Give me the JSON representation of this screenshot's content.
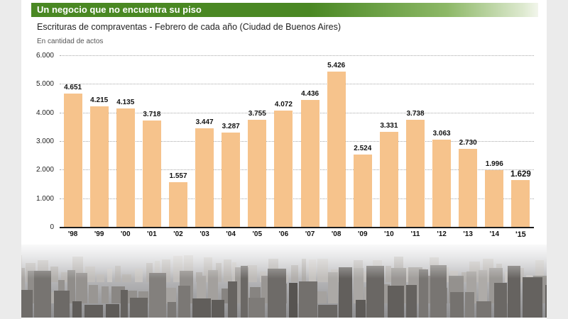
{
  "header": {
    "title": "Un negocio que no encuentra su piso",
    "subtitle": "Escrituras de compraventas - Febrero de cada año (Ciudad de Buenos Aires)",
    "unit_label": "En cantidad de actos"
  },
  "colors": {
    "header_green": "#4a8823",
    "bar_fill": "#f6c38c",
    "axis": "#1c1c1c",
    "grid": "#a8a8a8"
  },
  "chart_data": {
    "type": "bar",
    "title": "Escrituras de compraventas - Febrero de cada año (Ciudad de Buenos Aires)",
    "ylabel": "En cantidad de actos",
    "categories": [
      "'98",
      "'99",
      "'00",
      "'01",
      "'02",
      "'03",
      "'04",
      "'05",
      "'06",
      "'07",
      "'08",
      "'09",
      "'10",
      "'11",
      "'12",
      "'13",
      "'14",
      "'15"
    ],
    "values": [
      4651,
      4215,
      4135,
      3718,
      1557,
      3447,
      3287,
      3755,
      4072,
      4436,
      5426,
      2524,
      3331,
      3738,
      3063,
      2730,
      1996,
      1629
    ],
    "labels": [
      "4.651",
      "4.215",
      "4.135",
      "3.718",
      "1.557",
      "3.447",
      "3.287",
      "3.755",
      "4.072",
      "4.436",
      "5.426",
      "2.524",
      "3.331",
      "3.738",
      "3.063",
      "2.730",
      "1.996",
      "1.629"
    ],
    "ylim": [
      0,
      6000
    ],
    "yticks": [
      "0",
      "1.000",
      "2.000",
      "3.000",
      "4.000",
      "5.000",
      "6.000"
    ],
    "ytick_values": [
      0,
      1000,
      2000,
      3000,
      4000,
      5000,
      6000
    ],
    "grid": "dotted horizontal",
    "legend": "none",
    "highlight_last": true
  }
}
